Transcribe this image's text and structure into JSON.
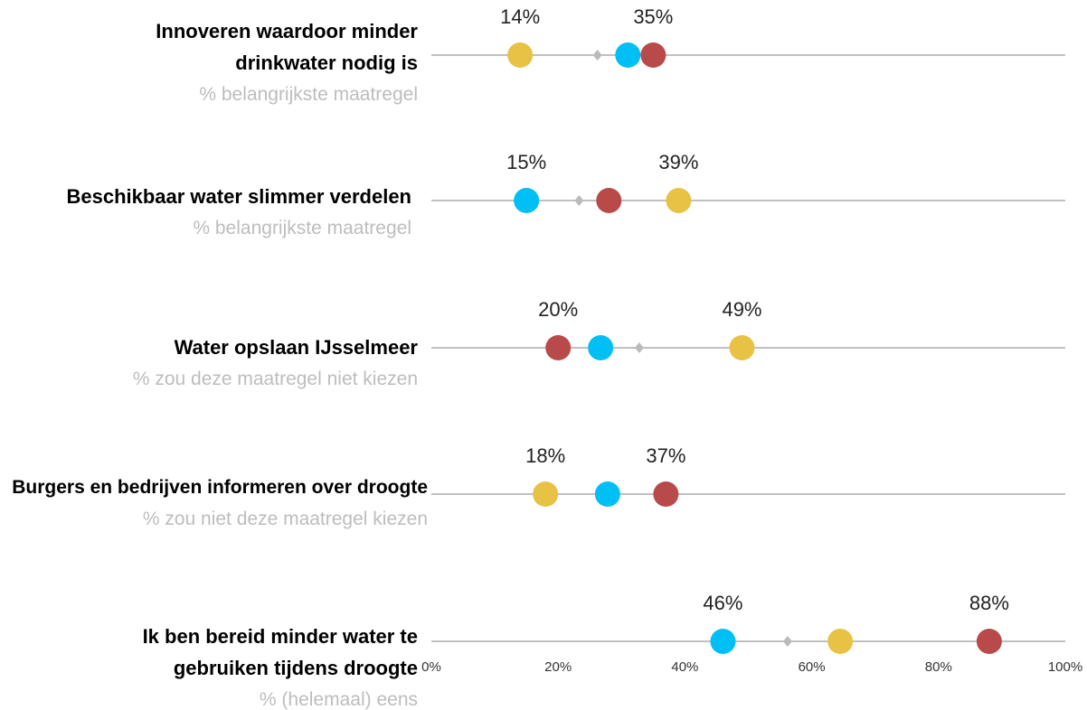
{
  "chart_data": {
    "type": "dot",
    "categories": [
      "Innoveren waardoor minder drinkwater nodig is",
      "Beschikbaar water slimmer verdelen",
      "Water opslaan IJsselmeer",
      "Burgers en bedrijven informeren over droogte",
      "Ik ben bereid minder water te gebruiken tijdens droogte"
    ],
    "subtitles": [
      "% belangrijkste maatregel",
      "% belangrijkste maatregel",
      "% zou deze maatregel niet kiezen",
      "% zou niet deze maatregel kiezen",
      "% (helemaal) eens"
    ],
    "series": [
      {
        "color": "#e8c245",
        "marker": "circle",
        "values": [
          14,
          39,
          49,
          18,
          64.5
        ],
        "value_labels": [
          "14%",
          "39%",
          "49%",
          "18%",
          null
        ]
      },
      {
        "color": "#00bff5",
        "marker": "circle",
        "values": [
          31,
          15,
          26.7,
          27.8,
          46
        ],
        "value_labels": [
          null,
          "15%",
          null,
          null,
          "46%"
        ]
      },
      {
        "color": "#b84a4a",
        "marker": "circle",
        "values": [
          35,
          28,
          20,
          37,
          88
        ],
        "value_labels": [
          "35%",
          null,
          "20%",
          "37%",
          "88%"
        ]
      },
      {
        "color": "#bbbbbb",
        "marker": "diamond",
        "values": [
          26.2,
          23.3,
          32.8,
          null,
          56.2
        ]
      }
    ],
    "xlim": [
      0,
      100
    ],
    "xticks": [
      {
        "value": 0,
        "label": "0%"
      },
      {
        "value": 20,
        "label": "20%"
      },
      {
        "value": 40,
        "label": "40%"
      },
      {
        "value": 60,
        "label": "60%"
      },
      {
        "value": 80,
        "label": "80%"
      },
      {
        "value": 100,
        "label": "100%"
      }
    ]
  }
}
